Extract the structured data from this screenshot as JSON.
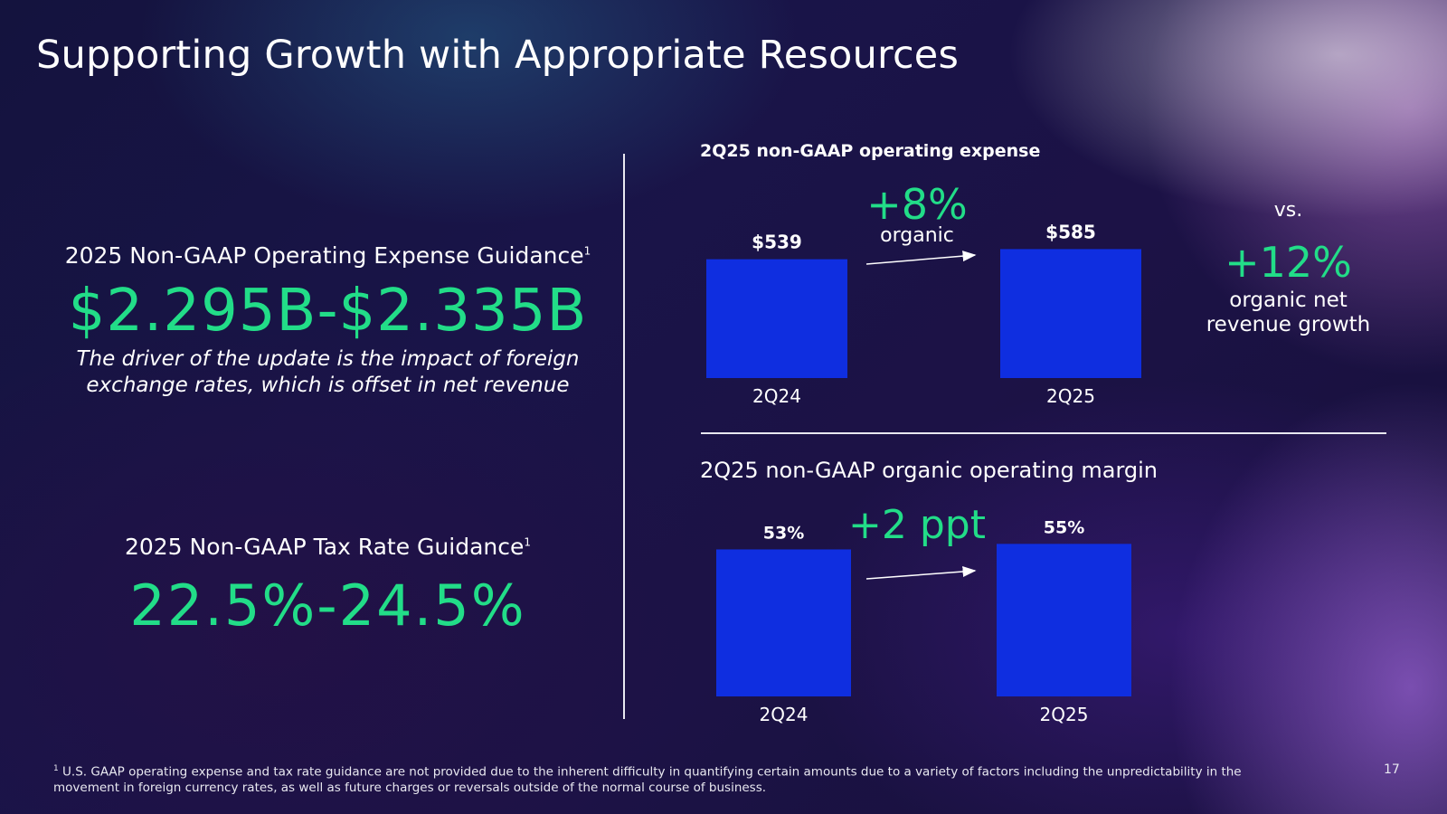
{
  "title": "Supporting Growth with Appropriate Resources",
  "left": {
    "opex_label": "2025 Non-GAAP Operating Expense Guidance",
    "opex_footnote_mark": "1",
    "opex_value": "$2.295B-$2.335B",
    "note_line1": "The driver of the update is the impact of foreign",
    "note_line2": "exchange rates, which is offset in net revenue",
    "tax_label": "2025 Non-GAAP Tax Rate Guidance",
    "tax_footnote_mark": "1",
    "tax_value": "22.5%-24.5%"
  },
  "vs": {
    "label": "vs.",
    "value": "+12%",
    "desc_line1": "organic net",
    "desc_line2": "revenue growth"
  },
  "footnote": {
    "mark": "1",
    "text": "U.S. GAAP operating expense and tax rate guidance are not provided due to the inherent difficulty in quantifying certain amounts due to a variety of factors including the unpredictability in the movement in foreign currency rates, as well as future charges or reversals outside of the normal course of business."
  },
  "page_number": "17",
  "colors": {
    "bar": "#0f2ee0",
    "accent_green": "#22dd88"
  },
  "chart_data": [
    {
      "type": "bar",
      "title": "2Q25 non-GAAP operating expense",
      "categories": [
        "2Q24",
        "2Q25"
      ],
      "values": [
        539,
        585
      ],
      "data_labels": [
        "$539",
        "$585"
      ],
      "annotation_value": "+8%",
      "annotation_sub": "organic",
      "ylim": [
        0,
        640
      ]
    },
    {
      "type": "bar",
      "title": "2Q25 non-GAAP organic operating margin",
      "categories": [
        "2Q24",
        "2Q25"
      ],
      "values": [
        53,
        55
      ],
      "data_labels": [
        "53%",
        "55%"
      ],
      "annotation_value": "+2 ppt",
      "ylim": [
        0,
        60
      ]
    }
  ]
}
